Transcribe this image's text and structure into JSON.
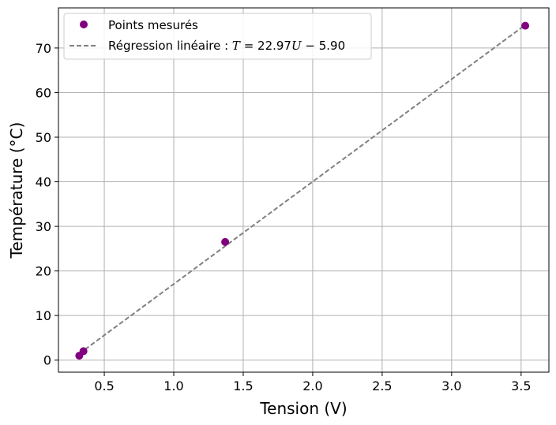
{
  "chart_data": {
    "type": "scatter",
    "xlabel": "Tension (V)",
    "ylabel": "Température (°C)",
    "xlim": [
      0.17,
      3.7
    ],
    "ylim": [
      -2.7,
      79.0
    ],
    "xticks": [
      0.5,
      1.0,
      1.5,
      2.0,
      2.5,
      3.0,
      3.5
    ],
    "xtick_labels": [
      "0.5",
      "1.0",
      "1.5",
      "2.0",
      "2.5",
      "3.0",
      "3.5"
    ],
    "yticks": [
      0,
      10,
      20,
      30,
      40,
      50,
      60,
      70
    ],
    "ytick_labels": [
      "0",
      "10",
      "20",
      "30",
      "40",
      "50",
      "60",
      "70"
    ],
    "grid": true,
    "legend_position": "top-left",
    "series": [
      {
        "name": "Points mesurés",
        "kind": "scatter",
        "color": "#800080",
        "x": [
          0.32,
          0.35,
          1.37,
          3.53
        ],
        "y": [
          1.0,
          2.0,
          26.5,
          75.0
        ]
      },
      {
        "name": "Régression linéaire : T = 22.97 U − 5.90",
        "kind": "line",
        "style": "dashed",
        "color": "#808080",
        "x": [
          0.32,
          3.53
        ],
        "y": [
          1.45,
          75.18
        ]
      }
    ],
    "legend": {
      "scatter_label": "Points mesurés",
      "line_label_prefix": "Régression linéaire : ",
      "line_label_formula": {
        "var_t": "T",
        "equals": " = 22.97",
        "var_u": "U",
        "rest": " − 5.90"
      }
    }
  }
}
